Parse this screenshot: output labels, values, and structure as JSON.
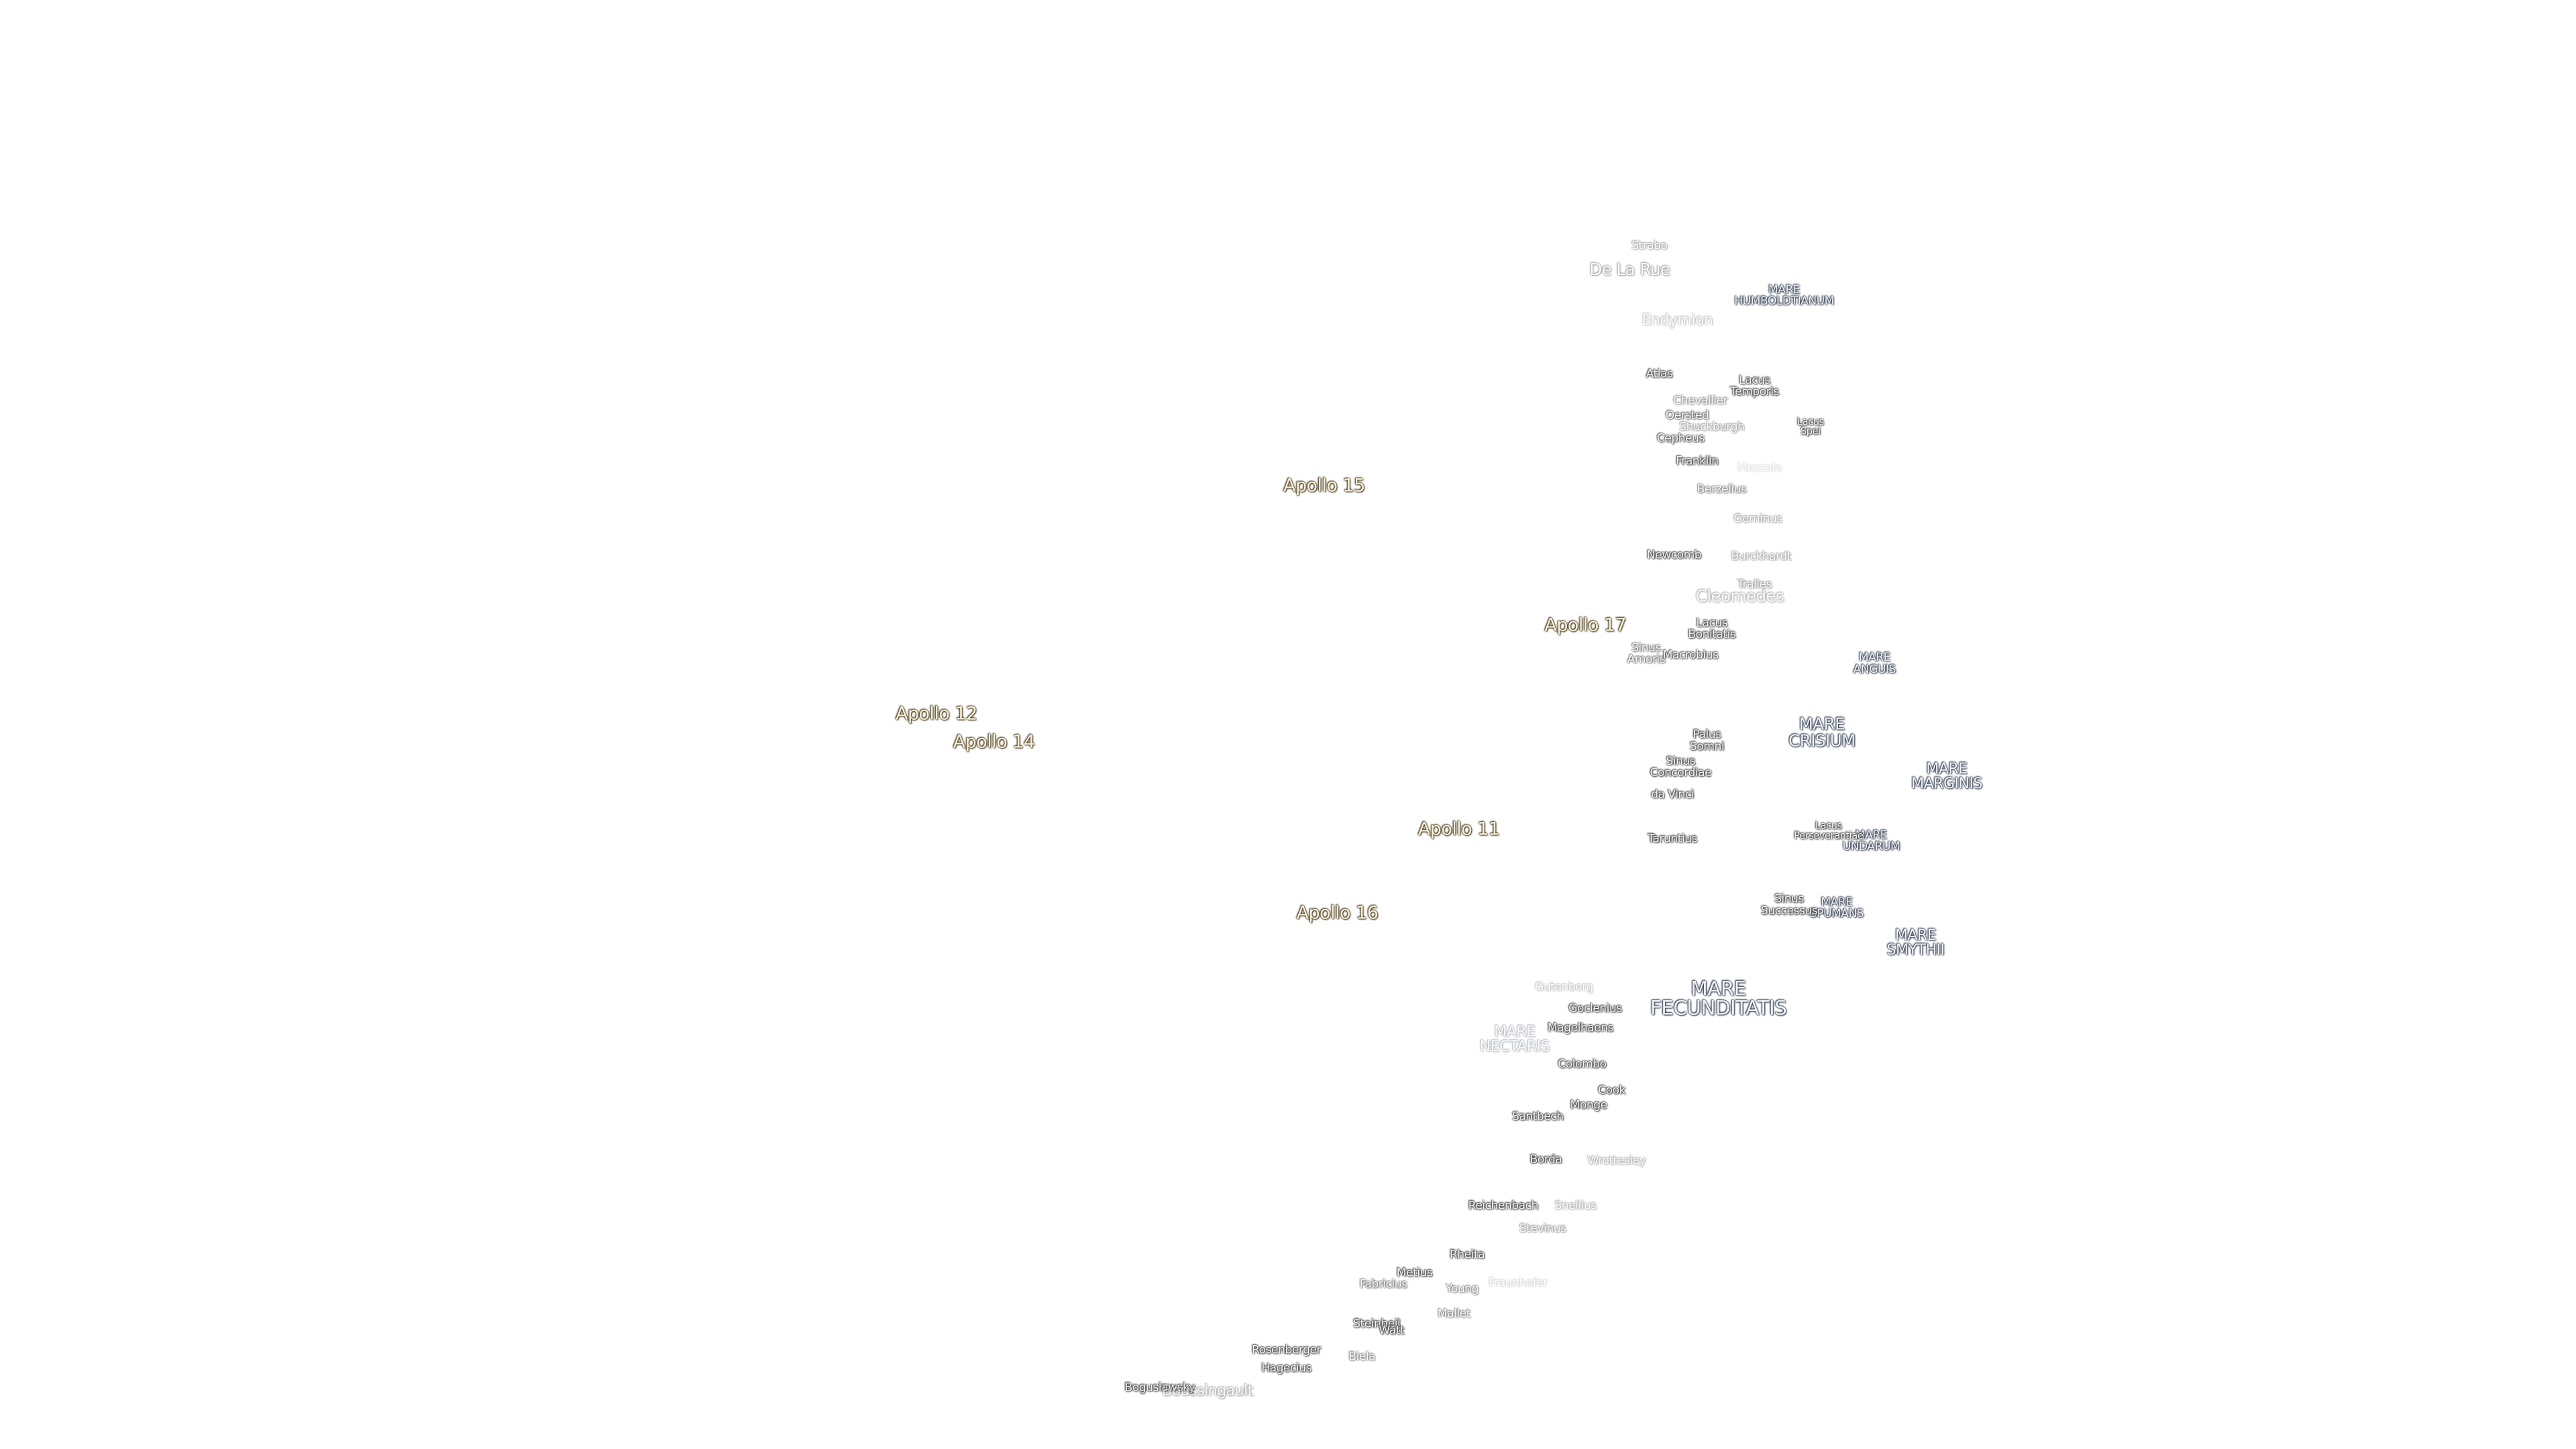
{
  "apollo_sites": [
    "Apollo 15",
    "Apollo 17",
    "Apollo 12",
    "Apollo 14",
    "Apollo 11",
    "Apollo 16"
  ],
  "maria": [
    "MARE HUMBOLDTIANUM",
    "MARE ANGUIS",
    "MARE CRISIUM",
    "MARE MARGINIS",
    "MARE UNDARUM",
    "MARE SPUMANS",
    "MARE SMYTHII",
    "MARE FECUNDITATIS",
    "MARE NECTARIS"
  ],
  "features": [
    "Strabo",
    "De La Rue",
    "Endymion",
    "Atlas",
    "Lacus Temporis",
    "Chevallier",
    "Oersted",
    "Shuckburgh",
    "Lacus Spei",
    "Cepheus",
    "Franklin",
    "Messala",
    "Berzelius",
    "Geminus",
    "Newcomb",
    "Burckhardt",
    "Tralles",
    "Cleomedes",
    "Lacus Bonitatis",
    "Sinus Amoris",
    "Macrobius",
    "Palus Somni",
    "Sinus Concordiae",
    "da Vinci",
    "Taruntius",
    "Lacus Perseverantiae",
    "Sinus Successus",
    "Gutenberg",
    "Goclenius",
    "Magelhaens",
    "Colombo",
    "Cook",
    "Monge",
    "Santbech",
    "Borda",
    "Wrottesley",
    "Reichenbach",
    "Snellius",
    "Stevinus",
    "Rheita",
    "Metius",
    "Fabricius",
    "Young",
    "Fraunhofer",
    "Mallet",
    "Steinheil",
    "Watt",
    "Rosenberger",
    "Hagecius",
    "Biela",
    "Boguslawsky",
    "Boussingault"
  ]
}
